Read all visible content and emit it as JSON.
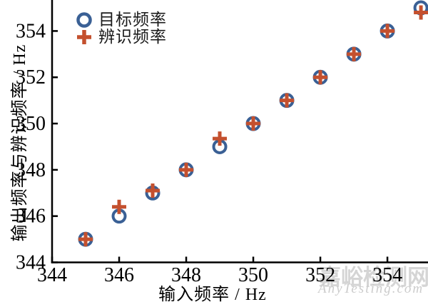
{
  "chart_data": {
    "type": "scatter",
    "title": "",
    "xlabel": "输入频率 / Hz",
    "ylabel": "输出频率与辨识频率 / Hz",
    "x": [
      345,
      346,
      347,
      348,
      349,
      350,
      351,
      352,
      353,
      354,
      355
    ],
    "series": [
      {
        "name": "目标频率",
        "marker": "circle",
        "color": "#3A6095",
        "values": [
          345,
          346,
          347,
          348,
          349,
          350,
          351,
          352,
          353,
          354,
          355
        ]
      },
      {
        "name": "辨识频率",
        "marker": "plus",
        "color": "#C4502E",
        "values": [
          345,
          346.4,
          347.1,
          348,
          349.35,
          350,
          351,
          352,
          353,
          354,
          354.8
        ]
      }
    ],
    "xlim": [
      344,
      355.2
    ],
    "ylim": [
      344,
      355.34
    ],
    "xticks": [
      344,
      346,
      348,
      350,
      352,
      354
    ],
    "yticks": [
      344,
      346,
      348,
      350,
      352,
      354
    ],
    "grid": false,
    "legend_position": "top-left",
    "axis_color": "#000000",
    "tick_label_color": "#000000"
  },
  "watermark": {
    "line1": "嘉峪检测网",
    "line2": "AnyTesting.com"
  }
}
